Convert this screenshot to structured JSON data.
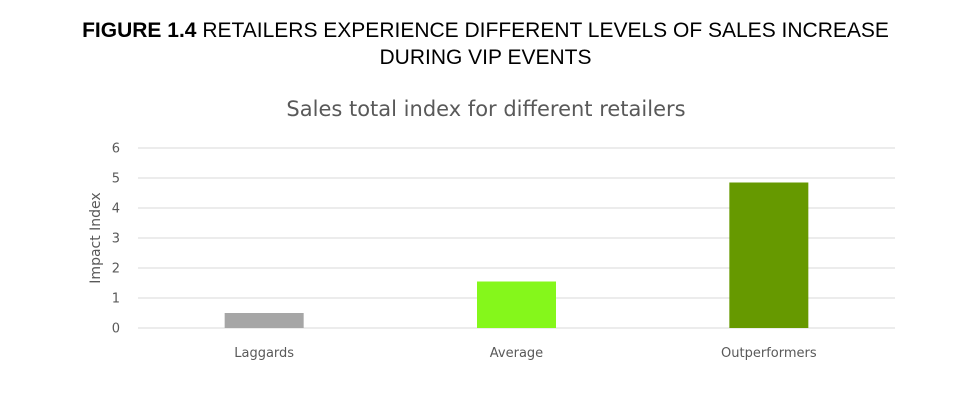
{
  "figure": {
    "label": "FIGURE 1.4",
    "title_line1": "RETAILERS EXPERIENCE DIFFERENT LEVELS OF SALES INCREASE",
    "title_line2": "DURING VIP EVENTS"
  },
  "chart_data": {
    "type": "bar",
    "title": "Sales total index for different retailers",
    "xlabel": "",
    "ylabel": "Impact Index",
    "categories": [
      "Laggards",
      "Average",
      "Outperformers"
    ],
    "values": [
      0.5,
      1.55,
      4.85
    ],
    "colors": [
      "#a6a6a6",
      "#85f71b",
      "#669900"
    ],
    "ylim": [
      0,
      6
    ],
    "yticks": [
      0,
      1,
      2,
      3,
      4,
      5,
      6
    ],
    "grid": true,
    "legend": "none"
  }
}
